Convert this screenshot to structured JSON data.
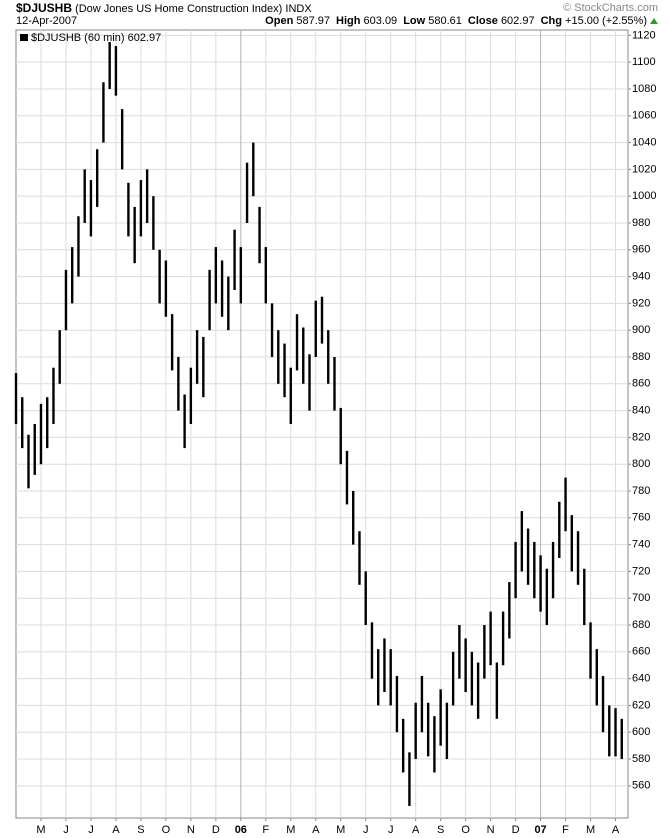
{
  "chart_data": {
    "type": "hl-bar",
    "title": "$DJUSHB",
    "subtitle": "(Dow Jones US Home Construction Index)",
    "exchange": "INDX",
    "date": "12-Apr-2007",
    "watermark": "© StockCharts.com",
    "quote": [
      {
        "label": "Open",
        "value": "587.97"
      },
      {
        "label": "High",
        "value": "603.09"
      },
      {
        "label": "Low",
        "value": "580.61"
      },
      {
        "label": "Close",
        "value": "602.97"
      },
      {
        "label": "Chg",
        "value": "+15.00 (+2.55%)"
      }
    ],
    "legend": "$DJUSHB (60 min) 602.97",
    "color": "#000000",
    "grid": true,
    "ylim": [
      536,
      1124
    ],
    "yticks": [
      560,
      580,
      600,
      620,
      640,
      660,
      680,
      700,
      720,
      740,
      760,
      780,
      800,
      820,
      840,
      860,
      880,
      900,
      920,
      940,
      960,
      980,
      1000,
      1020,
      1040,
      1060,
      1080,
      1100,
      1120
    ],
    "xlim": [
      0,
      24.5
    ],
    "xticks": [
      {
        "value": 1,
        "label": "M"
      },
      {
        "value": 2,
        "label": "J"
      },
      {
        "value": 3,
        "label": "J"
      },
      {
        "value": 4,
        "label": "A"
      },
      {
        "value": 5,
        "label": "S"
      },
      {
        "value": 6,
        "label": "O"
      },
      {
        "value": 7,
        "label": "N"
      },
      {
        "value": 8,
        "label": "D"
      },
      {
        "value": 9,
        "label": "06"
      },
      {
        "value": 10,
        "label": "F"
      },
      {
        "value": 11,
        "label": "M"
      },
      {
        "value": 12,
        "label": "A"
      },
      {
        "value": 13,
        "label": "M"
      },
      {
        "value": 14,
        "label": "J"
      },
      {
        "value": 15,
        "label": "J"
      },
      {
        "value": 16,
        "label": "A"
      },
      {
        "value": 17,
        "label": "S"
      },
      {
        "value": 18,
        "label": "O"
      },
      {
        "value": 19,
        "label": "N"
      },
      {
        "value": 20,
        "label": "D"
      },
      {
        "value": 21,
        "label": "07"
      },
      {
        "value": 22,
        "label": "F"
      },
      {
        "value": 23,
        "label": "M"
      },
      {
        "value": 24,
        "label": "A"
      }
    ],
    "x": [
      0,
      0.25,
      0.5,
      0.75,
      1,
      1.25,
      1.5,
      1.75,
      2,
      2.25,
      2.5,
      2.75,
      3,
      3.25,
      3.5,
      3.75,
      4,
      4.25,
      4.5,
      4.75,
      5,
      5.25,
      5.5,
      5.75,
      6,
      6.25,
      6.5,
      6.75,
      7,
      7.25,
      7.5,
      7.75,
      8,
      8.25,
      8.5,
      8.75,
      9,
      9.25,
      9.5,
      9.75,
      10,
      10.25,
      10.5,
      10.75,
      11,
      11.25,
      11.5,
      11.75,
      12,
      12.25,
      12.5,
      12.75,
      13,
      13.25,
      13.5,
      13.75,
      14,
      14.25,
      14.5,
      14.75,
      15,
      15.25,
      15.5,
      15.75,
      16,
      16.25,
      16.5,
      16.75,
      17,
      17.25,
      17.5,
      17.75,
      18,
      18.25,
      18.5,
      18.75,
      19,
      19.25,
      19.5,
      19.75,
      20,
      20.25,
      20.5,
      20.75,
      21,
      21.25,
      21.5,
      21.75,
      22,
      22.25,
      22.5,
      22.75,
      23,
      23.25,
      23.5,
      23.75,
      24,
      24.25
    ],
    "high": [
      868,
      850,
      822,
      830,
      845,
      850,
      872,
      900,
      945,
      962,
      985,
      1020,
      1012,
      1035,
      1085,
      1115,
      1112,
      1065,
      1010,
      992,
      1012,
      1020,
      1000,
      960,
      952,
      912,
      880,
      852,
      872,
      900,
      895,
      945,
      962,
      952,
      940,
      975,
      962,
      1025,
      1040,
      992,
      962,
      920,
      900,
      890,
      872,
      912,
      902,
      882,
      922,
      925,
      900,
      880,
      842,
      810,
      780,
      750,
      720,
      682,
      662,
      670,
      662,
      642,
      610,
      585,
      622,
      642,
      622,
      612,
      632,
      622,
      660,
      680,
      670,
      660,
      652,
      680,
      690,
      652,
      690,
      712,
      742,
      765,
      752,
      742,
      732,
      722,
      742,
      772,
      790,
      762,
      750,
      722,
      682,
      662,
      642,
      620,
      618,
      610
    ],
    "low": [
      830,
      812,
      782,
      792,
      800,
      812,
      830,
      860,
      900,
      920,
      940,
      980,
      970,
      992,
      1040,
      1080,
      1075,
      1020,
      970,
      950,
      970,
      980,
      960,
      920,
      910,
      870,
      840,
      812,
      830,
      860,
      850,
      900,
      920,
      910,
      900,
      930,
      920,
      980,
      1000,
      950,
      920,
      880,
      860,
      850,
      830,
      870,
      860,
      840,
      880,
      890,
      860,
      840,
      800,
      770,
      740,
      710,
      680,
      640,
      620,
      630,
      620,
      600,
      570,
      545,
      580,
      600,
      582,
      570,
      590,
      580,
      620,
      640,
      630,
      620,
      610,
      640,
      650,
      610,
      650,
      670,
      700,
      720,
      710,
      700,
      690,
      680,
      700,
      730,
      750,
      720,
      710,
      680,
      640,
      620,
      600,
      582,
      582,
      580
    ]
  }
}
